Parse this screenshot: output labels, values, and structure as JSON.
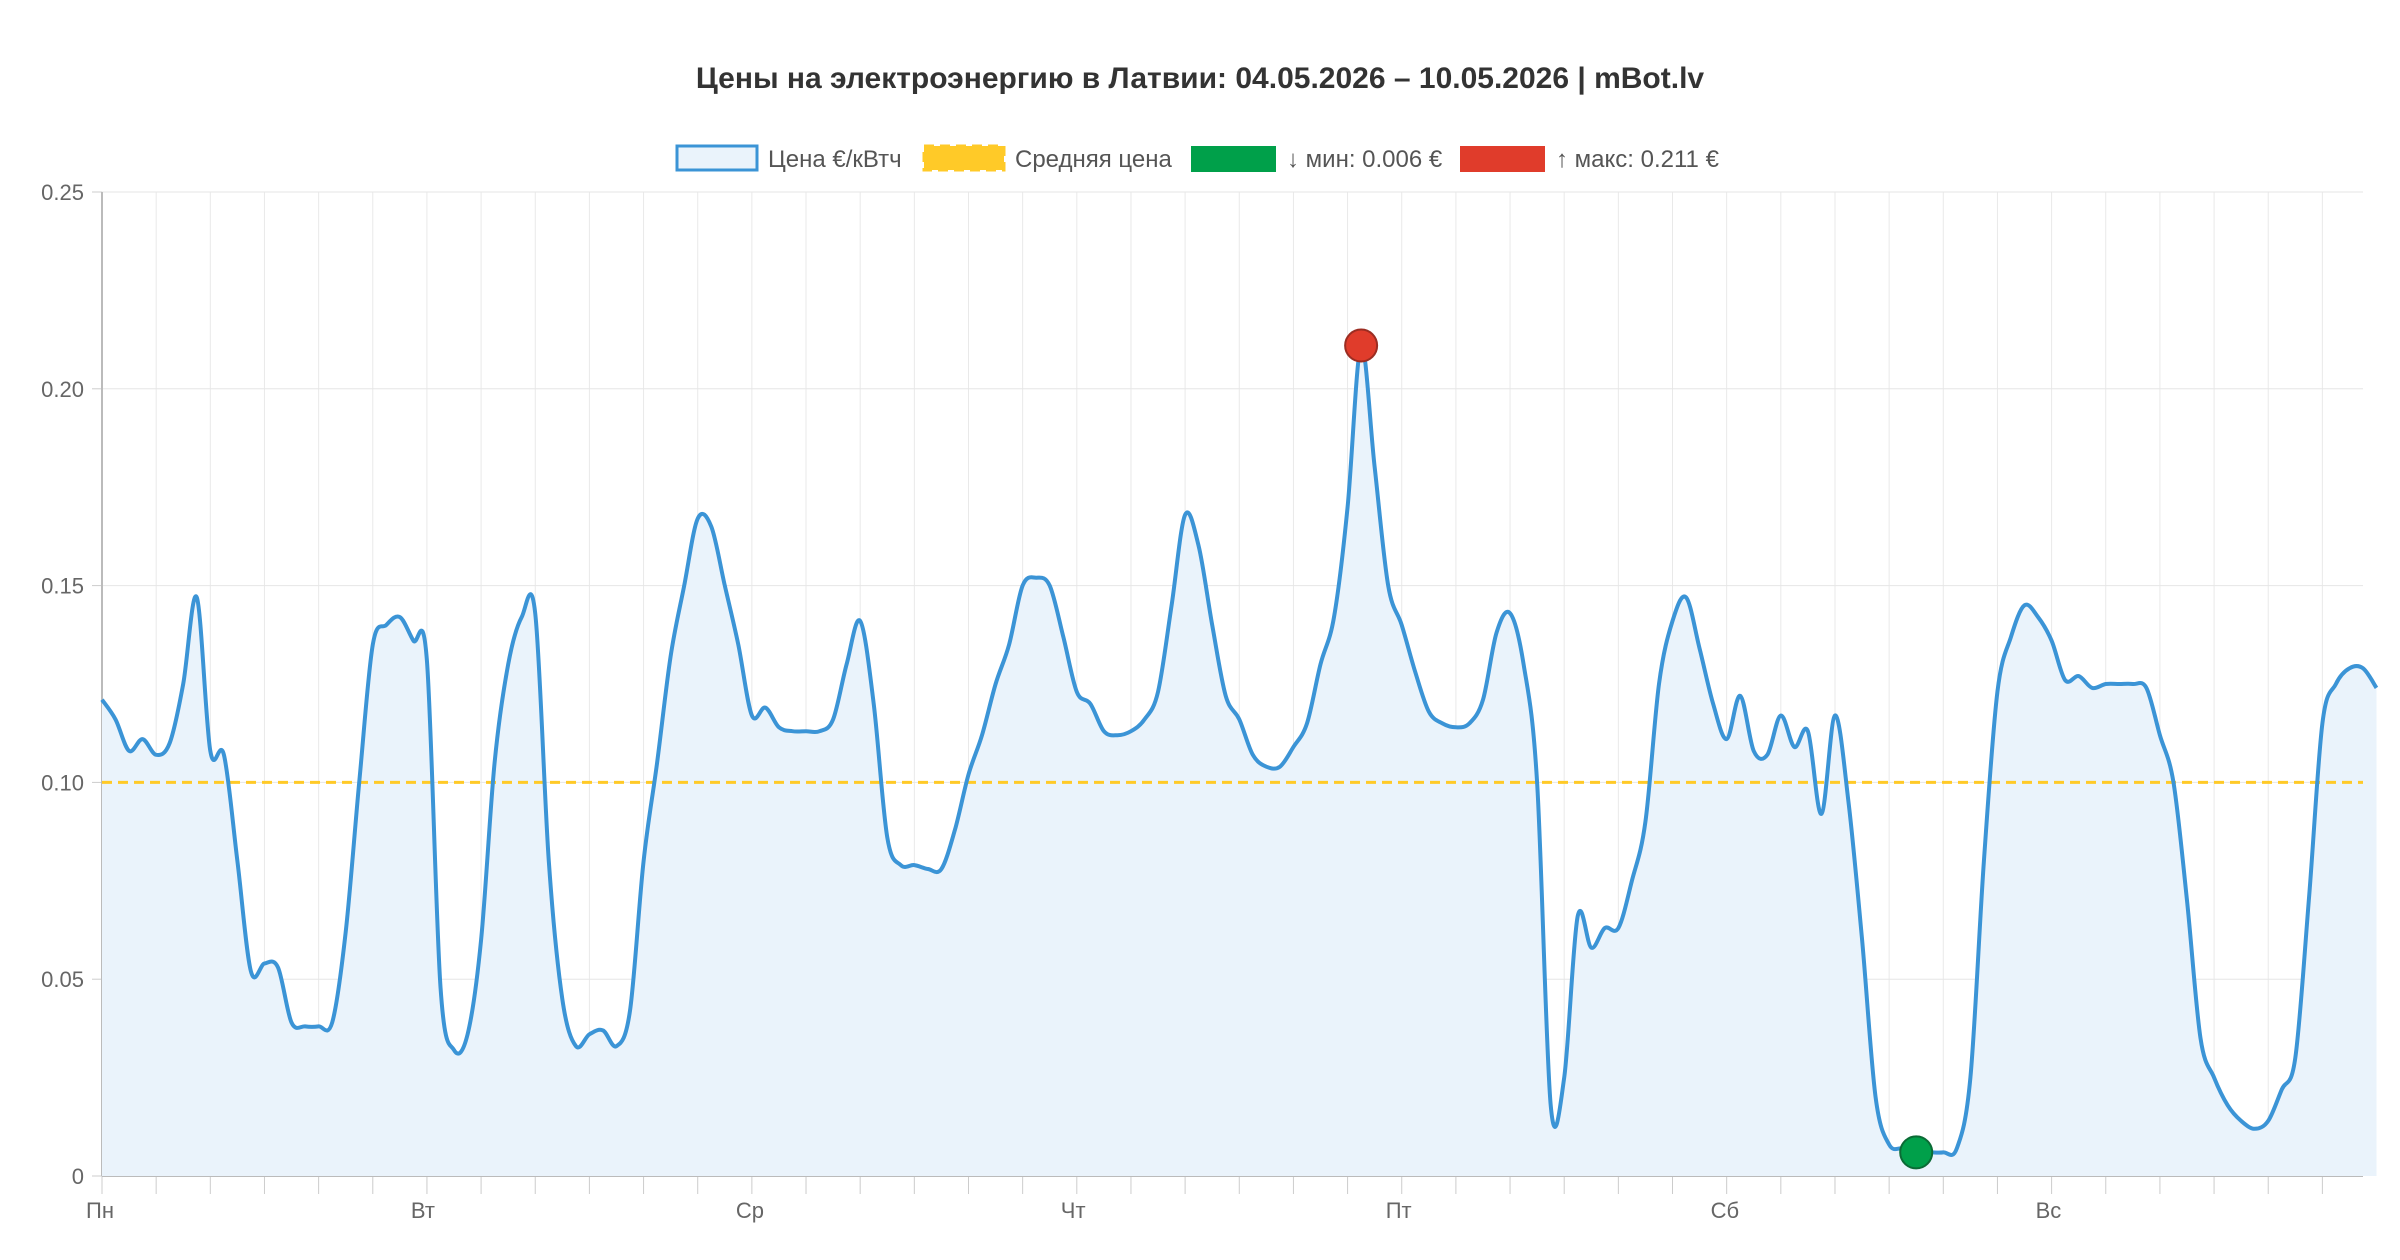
{
  "chart_data": {
    "type": "line",
    "title": "Цены на электроэнергию в Латвии: 04.05.2026 – 10.05.2026 | mBot.lv",
    "legend": [
      {
        "key": "price",
        "label": "Цена €/кВтч",
        "color": "#3b94d6"
      },
      {
        "key": "avg",
        "label": "Средняя цена",
        "color": "#ffca28"
      },
      {
        "key": "min",
        "label": "↓ мин: 0.006 €",
        "color": "#00a04a"
      },
      {
        "key": "max",
        "label": "↑ макс: 0.211 €",
        "color": "#e03c2b"
      }
    ],
    "legend_placement": "top-center",
    "x_labels": [
      "Пн",
      "Вт",
      "Ср",
      "Чт",
      "Пт",
      "Сб",
      "Вс"
    ],
    "y_ticks": [
      "0",
      "0.05",
      "0.10",
      "0.15",
      "0.20",
      "0.25"
    ],
    "ylim": [
      0,
      0.25
    ],
    "xlim": [
      0,
      167
    ],
    "grid": true,
    "average": 0.1,
    "min_point": {
      "x": 134,
      "y": 0.006
    },
    "max_point": {
      "x": 93,
      "y": 0.211
    },
    "series": [
      {
        "key": "price",
        "values": [
          0.121,
          0.116,
          0.108,
          0.111,
          0.107,
          0.11,
          0.125,
          0.147,
          0.108,
          0.107,
          0.08,
          0.052,
          0.054,
          0.053,
          0.039,
          0.038,
          0.038,
          0.039,
          0.062,
          0.1,
          0.135,
          0.14,
          0.142,
          0.136,
          0.131,
          0.048,
          0.032,
          0.036,
          0.06,
          0.105,
          0.13,
          0.142,
          0.143,
          0.08,
          0.045,
          0.033,
          0.036,
          0.037,
          0.033,
          0.042,
          0.08,
          0.105,
          0.132,
          0.15,
          0.167,
          0.165,
          0.15,
          0.135,
          0.117,
          0.119,
          0.114,
          0.113,
          0.113,
          0.113,
          0.116,
          0.13,
          0.141,
          0.12,
          0.086,
          0.079,
          0.079,
          0.078,
          0.078,
          0.088,
          0.102,
          0.112,
          0.125,
          0.135,
          0.15,
          0.152,
          0.15,
          0.137,
          0.123,
          0.12,
          0.113,
          0.112,
          0.113,
          0.116,
          0.123,
          0.145,
          0.168,
          0.16,
          0.14,
          0.122,
          0.116,
          0.107,
          0.104,
          0.104,
          0.109,
          0.115,
          0.13,
          0.142,
          0.17,
          0.211,
          0.18,
          0.15,
          0.14,
          0.128,
          0.118,
          0.115,
          0.114,
          0.115,
          0.121,
          0.138,
          0.143,
          0.13,
          0.1,
          0.018,
          0.025,
          0.066,
          0.058,
          0.063,
          0.063,
          0.075,
          0.09,
          0.125,
          0.141,
          0.147,
          0.134,
          0.12,
          0.111,
          0.122,
          0.108,
          0.107,
          0.117,
          0.109,
          0.113,
          0.092,
          0.117,
          0.095,
          0.06,
          0.02,
          0.008,
          0.007,
          0.006,
          0.006,
          0.006,
          0.007,
          0.025,
          0.08,
          0.123,
          0.137,
          0.145,
          0.142,
          0.136,
          0.126,
          0.127,
          0.124,
          0.125,
          0.125,
          0.125,
          0.124,
          0.112,
          0.1,
          0.07,
          0.035,
          0.025,
          0.018,
          0.014,
          0.012,
          0.014,
          0.022,
          0.03,
          0.07,
          0.115,
          0.125,
          0.129,
          0.129,
          0.124
        ]
      }
    ]
  }
}
